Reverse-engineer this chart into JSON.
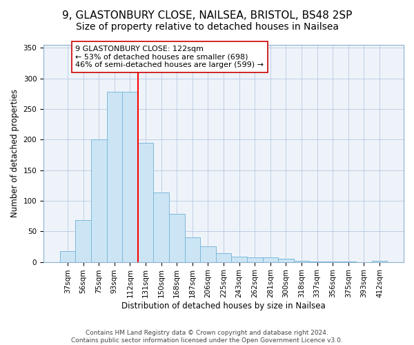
{
  "title": "9, GLASTONBURY CLOSE, NAILSEA, BRISTOL, BS48 2SP",
  "subtitle": "Size of property relative to detached houses in Nailsea",
  "xlabel": "Distribution of detached houses by size in Nailsea",
  "ylabel": "Number of detached properties",
  "bar_labels": [
    "37sqm",
    "56sqm",
    "75sqm",
    "93sqm",
    "112sqm",
    "131sqm",
    "150sqm",
    "168sqm",
    "187sqm",
    "206sqm",
    "225sqm",
    "243sqm",
    "262sqm",
    "281sqm",
    "300sqm",
    "318sqm",
    "337sqm",
    "356sqm",
    "375sqm",
    "393sqm",
    "412sqm"
  ],
  "bar_values": [
    18,
    68,
    200,
    278,
    278,
    195,
    113,
    78,
    40,
    25,
    14,
    9,
    8,
    7,
    5,
    2,
    1,
    1,
    1,
    0,
    2
  ],
  "bar_color": "#cce5f5",
  "bar_edge_color": "#7ab8d8",
  "vline_x": 4.5,
  "vline_color": "red",
  "annotation_title": "9 GLASTONBURY CLOSE: 122sqm",
  "annotation_line1": "← 53% of detached houses are smaller (698)",
  "annotation_line2": "46% of semi-detached houses are larger (599) →",
  "annotation_box_color": "white",
  "annotation_box_edge": "#cc0000",
  "ylim": [
    0,
    355
  ],
  "yticks": [
    0,
    50,
    100,
    150,
    200,
    250,
    300,
    350
  ],
  "footer_line1": "Contains HM Land Registry data © Crown copyright and database right 2024.",
  "footer_line2": "Contains public sector information licensed under the Open Government Licence v3.0.",
  "title_fontsize": 11,
  "label_fontsize": 8.5,
  "tick_fontsize": 7.5,
  "footer_fontsize": 6.5,
  "ann_fontsize": 8
}
